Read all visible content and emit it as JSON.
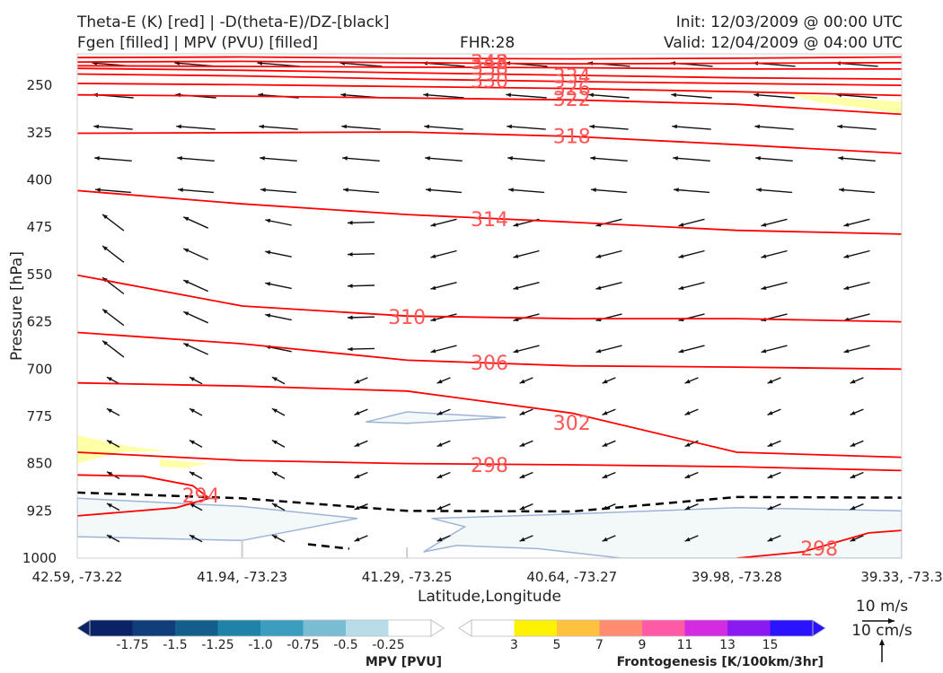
{
  "header": {
    "title_line1": "Theta-E (K) [red] | -D(theta-E)/DZ-[black]",
    "title_line2": "Fgen [filled] | MPV (PVU) [filled]",
    "fhr": "FHR:28",
    "init": "Init: 12/03/2009 @ 00:00 UTC",
    "valid": "Valid: 12/04/2009 @ 04:00 UTC"
  },
  "colors": {
    "theta_e": "#ff0000",
    "theta_e_label": "#ff5555",
    "wind_barb": "#111111",
    "dthetae_dz": "#000000",
    "mpv_fill": "#f3f8f8",
    "mpv_edge": "#9fb3d6",
    "fgen_fill": "#ffffa8",
    "surface_bar": "#cccccc"
  },
  "chart_data": {
    "type": "cross-section",
    "xlabel": "Latitude,Longitude",
    "ylabel": "Pressure [hPa]",
    "x_ticks": [
      "42.59, -73.22",
      "41.94, -73.23",
      "41.29, -73.25",
      "40.64, -73.27",
      "39.98, -73.28",
      "39.33, -73.3"
    ],
    "y_ticks": [
      250,
      325,
      400,
      475,
      550,
      625,
      700,
      775,
      850,
      925,
      1000
    ],
    "ylim": [
      1000,
      200
    ],
    "xlim": [
      0,
      5
    ],
    "grid": false,
    "theta_e_contours": [
      {
        "value": 348,
        "label": "348",
        "label_at": [
          2.5,
          212
        ],
        "points": [
          [
            0,
            206
          ],
          [
            1,
            205
          ],
          [
            2,
            207
          ],
          [
            3,
            208
          ],
          [
            4,
            207
          ],
          [
            5,
            205
          ]
        ]
      },
      {
        "value": 342,
        "label": "342",
        "label_at": [
          2.5,
          213
        ],
        "points": [
          [
            0,
            213
          ],
          [
            1,
            212
          ],
          [
            2,
            214
          ],
          [
            3,
            216
          ],
          [
            4,
            215
          ],
          [
            5,
            214
          ]
        ]
      },
      {
        "value": 338,
        "label": "338",
        "label_at": [
          2.5,
          221
        ],
        "points": [
          [
            0,
            219
          ],
          [
            1,
            220
          ],
          [
            2,
            221
          ],
          [
            3,
            222
          ],
          [
            4,
            224
          ],
          [
            5,
            224
          ]
        ]
      },
      {
        "value": 334,
        "label": "334",
        "label_at": [
          3.0,
          235
        ],
        "points": [
          [
            0,
            223
          ],
          [
            1,
            226
          ],
          [
            2,
            230
          ],
          [
            3,
            234
          ],
          [
            4,
            238
          ],
          [
            5,
            240
          ]
        ]
      },
      {
        "value": 330,
        "label": "330",
        "label_at": [
          2.5,
          242
        ],
        "points": [
          [
            0,
            232
          ],
          [
            1,
            235
          ],
          [
            2,
            240
          ],
          [
            3,
            244
          ],
          [
            4,
            247
          ],
          [
            5,
            250
          ]
        ]
      },
      {
        "value": 326,
        "label": "326",
        "label_at": [
          3.0,
          254
        ],
        "points": [
          [
            0,
            247
          ],
          [
            1,
            249
          ],
          [
            2,
            252
          ],
          [
            3,
            255
          ],
          [
            4,
            260
          ],
          [
            5,
            266
          ]
        ]
      },
      {
        "value": 322,
        "label": "322",
        "label_at": [
          3.0,
          271
        ],
        "points": [
          [
            0,
            265
          ],
          [
            1,
            267
          ],
          [
            2,
            270
          ],
          [
            3,
            273
          ],
          [
            4,
            280
          ],
          [
            5,
            296
          ]
        ]
      },
      {
        "value": 318,
        "label": "318",
        "label_at": [
          3.0,
          330
        ],
        "points": [
          [
            0,
            326
          ],
          [
            1,
            325
          ],
          [
            2,
            324
          ],
          [
            3,
            331
          ],
          [
            4,
            344
          ],
          [
            5,
            358
          ]
        ]
      },
      {
        "value": 314,
        "label": "314",
        "label_at": [
          2.5,
          462
        ],
        "points": [
          [
            0,
            417
          ],
          [
            1,
            438
          ],
          [
            2,
            455
          ],
          [
            3,
            467
          ],
          [
            4,
            480
          ],
          [
            5,
            486
          ]
        ]
      },
      {
        "value": 310,
        "label": "310",
        "label_at": [
          2.0,
          617
        ],
        "points": [
          [
            0,
            551
          ],
          [
            1,
            600
          ],
          [
            2,
            616
          ],
          [
            3,
            620
          ],
          [
            4,
            620
          ],
          [
            5,
            625
          ]
        ]
      },
      {
        "value": 306,
        "label": "306",
        "label_at": [
          2.5,
          690
        ],
        "points": [
          [
            0,
            642
          ],
          [
            1,
            660
          ],
          [
            2,
            686
          ],
          [
            3,
            695
          ],
          [
            4,
            697
          ],
          [
            5,
            700
          ]
        ]
      },
      {
        "value": 302,
        "label": "302",
        "label_at": [
          3.0,
          785
        ],
        "points": [
          [
            0,
            722
          ],
          [
            1,
            727
          ],
          [
            2,
            735
          ],
          [
            3,
            770
          ],
          [
            4,
            832
          ],
          [
            5,
            840
          ]
        ]
      },
      {
        "value": 298,
        "label": "298",
        "label_at": [
          2.5,
          852
        ],
        "points": [
          [
            0,
            832
          ],
          [
            1,
            845
          ],
          [
            2,
            850
          ],
          [
            3,
            852
          ],
          [
            4,
            855
          ],
          [
            5,
            861
          ]
        ]
      },
      {
        "value": 298,
        "label": "298",
        "label_at": [
          4.5,
          984
        ],
        "points": [
          [
            4.0,
            1000
          ],
          [
            4.4,
            990
          ],
          [
            4.8,
            960
          ],
          [
            5,
            956
          ]
        ]
      },
      {
        "value": 294,
        "label": "294",
        "label_at": [
          0.75,
          900
        ],
        "points": [
          [
            0,
            868
          ],
          [
            0.4,
            870
          ],
          [
            0.7,
            885
          ],
          [
            0.8,
            905
          ],
          [
            0.6,
            920
          ],
          [
            0,
            933
          ]
        ]
      }
    ],
    "dthetae_dz_contours": [
      {
        "points": [
          [
            0,
            896
          ],
          [
            1,
            905
          ],
          [
            2,
            925
          ],
          [
            3,
            926
          ],
          [
            4,
            903
          ],
          [
            5,
            904
          ]
        ]
      },
      {
        "points": [
          [
            1.4,
            978
          ],
          [
            1.65,
            985
          ]
        ]
      }
    ],
    "mpv_regions": [
      {
        "points": [
          [
            0,
            905
          ],
          [
            1,
            918
          ],
          [
            1.7,
            937
          ],
          [
            1.0,
            972
          ],
          [
            0,
            966
          ]
        ]
      },
      {
        "points": [
          [
            2.15,
            937
          ],
          [
            3,
            930
          ],
          [
            4,
            920
          ],
          [
            5,
            925
          ],
          [
            5,
            1000
          ],
          [
            3.3,
            1000
          ],
          [
            2.8,
            985
          ],
          [
            2.3,
            980
          ],
          [
            2.1,
            990
          ],
          [
            2.35,
            950
          ]
        ]
      },
      {
        "points": [
          [
            1.75,
            784
          ],
          [
            2.0,
            768
          ],
          [
            2.6,
            777
          ],
          [
            2.0,
            786
          ]
        ]
      }
    ],
    "fgen_regions": [
      {
        "points": [
          [
            4.3,
            262
          ],
          [
            4.65,
            270
          ],
          [
            5,
            276
          ],
          [
            5,
            295
          ],
          [
            4.8,
            287
          ],
          [
            4.5,
            277
          ]
        ]
      },
      {
        "points": [
          [
            0,
            805
          ],
          [
            0.3,
            822
          ],
          [
            0.55,
            830
          ],
          [
            0.25,
            832
          ],
          [
            0,
            850
          ]
        ]
      },
      {
        "points": [
          [
            0.5,
            843
          ],
          [
            0.8,
            850
          ],
          [
            0.65,
            857
          ],
          [
            0.5,
            855
          ]
        ]
      }
    ],
    "surface_columns": [
      {
        "x": 1.0,
        "p_top": 970
      },
      {
        "x": 2.0,
        "p_top": 983
      }
    ]
  },
  "legend": {
    "wind_label": "10 m/s",
    "vert_label": "10 cm/s"
  },
  "colorbars": {
    "mpv": {
      "title": "MPV [PVU]",
      "ticks": [
        "-1.75",
        "-1.5",
        "-1.25",
        "-1.0",
        "-0.75",
        "-0.5",
        "-0.25"
      ],
      "colors": [
        "#0a2266",
        "#0f3e7b",
        "#145e8e",
        "#1f82a8",
        "#3c9dbf",
        "#79bdd5",
        "#b9dde8",
        "#ffffff"
      ]
    },
    "fgen": {
      "title": "Frontogenesis [K/100km/3hr]",
      "ticks": [
        "3",
        "5",
        "7",
        "9",
        "11",
        "13",
        "15"
      ],
      "colors": [
        "#ffffff",
        "#fff200",
        "#ffc23c",
        "#ff8c6e",
        "#ff5aa6",
        "#d22be0",
        "#8b19f2",
        "#2a13ff"
      ]
    }
  }
}
